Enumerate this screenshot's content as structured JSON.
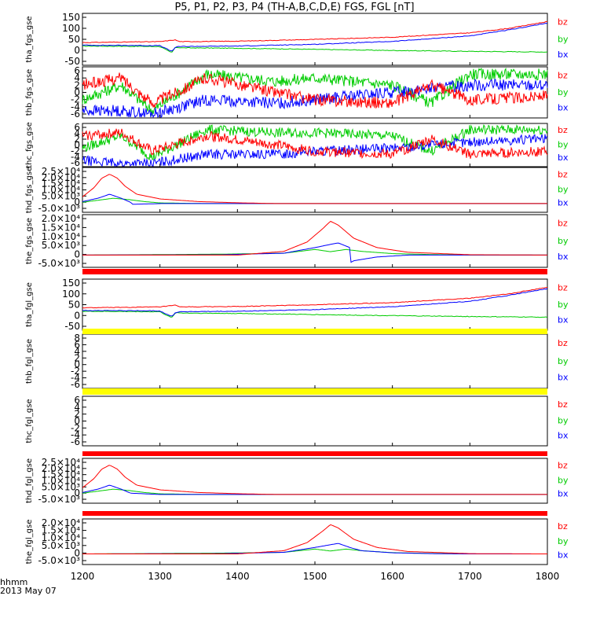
{
  "title": "P5, P1, P2, P3, P4 (TH-A,B,C,D,E) FGS, FGL [nT]",
  "footer": {
    "axis_label": "hhmm",
    "date": "2013 May 07"
  },
  "colors": {
    "bx": "#0000ff",
    "by": "#00cc00",
    "bz": "#ff0000",
    "flag_red": "#ff0000",
    "flag_yellow": "#ffff00"
  },
  "legend": [
    "bz",
    "by",
    "bx"
  ],
  "chart_data": [
    {
      "type": "line",
      "ylabel": "tha_fgs_gse",
      "yticks": [
        "150",
        "100",
        "50",
        "0",
        "-50"
      ],
      "ylim": [
        -75,
        160
      ],
      "kind": "slow",
      "series": [
        {
          "name": "bz",
          "x": [
            1200,
            1300,
            1315,
            1320,
            1325,
            1400,
            1500,
            1600,
            1700,
            1750,
            1800
          ],
          "values": [
            28,
            32,
            38,
            40,
            32,
            34,
            42,
            52,
            72,
            92,
            123
          ]
        },
        {
          "name": "by",
          "x": [
            1200,
            1300,
            1315,
            1320,
            1330,
            1400,
            1500,
            1600,
            1700,
            1800
          ],
          "values": [
            12,
            10,
            -18,
            6,
            4,
            2,
            -3,
            -8,
            -12,
            -15
          ]
        },
        {
          "name": "bx",
          "x": [
            1200,
            1300,
            1315,
            1320,
            1325,
            1400,
            1500,
            1600,
            1700,
            1750,
            1800
          ],
          "values": [
            16,
            14,
            -12,
            6,
            10,
            12,
            20,
            33,
            58,
            85,
            116
          ]
        }
      ]
    },
    {
      "type": "line",
      "ylabel": "thb_fgs_gse",
      "yticks": [
        "6",
        "4",
        "2",
        "0",
        "-2",
        "-4",
        "-6"
      ],
      "ylim": [
        -7,
        7
      ],
      "kind": "noisy",
      "series": [
        {
          "name": "bz",
          "x": [
            1200,
            1250,
            1290,
            1360,
            1450,
            1500,
            1600,
            1650,
            1700,
            1800
          ],
          "values": [
            2,
            4,
            -3,
            4,
            0,
            -2,
            -3,
            2,
            -2,
            -1
          ]
        },
        {
          "name": "by",
          "x": [
            1200,
            1250,
            1290,
            1360,
            1450,
            1500,
            1600,
            1650,
            1700,
            1800
          ],
          "values": [
            -2,
            2,
            -5,
            5,
            3,
            4,
            2,
            -3,
            5,
            5
          ]
        },
        {
          "name": "bx",
          "x": [
            1200,
            1250,
            1290,
            1360,
            1450,
            1500,
            1600,
            1650,
            1700,
            1800
          ],
          "values": [
            -5,
            -5,
            -6,
            -2,
            -3,
            -2,
            0,
            1,
            2,
            2
          ]
        }
      ]
    },
    {
      "type": "line",
      "ylabel": "thc_fgs_gse",
      "yticks": [
        "6",
        "4",
        "2",
        "0",
        "-2",
        "-4",
        "-6"
      ],
      "ylim": [
        -7,
        7
      ],
      "kind": "noisy",
      "series": [
        {
          "name": "bz",
          "x": [
            1200,
            1250,
            1290,
            1360,
            1450,
            1500,
            1600,
            1650,
            1700,
            1800
          ],
          "values": [
            3,
            4,
            -2,
            3,
            0,
            -2,
            -3,
            2,
            -3,
            -2
          ]
        },
        {
          "name": "by",
          "x": [
            1200,
            1250,
            1290,
            1360,
            1450,
            1500,
            1600,
            1650,
            1700,
            1800
          ],
          "values": [
            -1,
            3,
            -4,
            5,
            4,
            4,
            3,
            -2,
            5,
            5
          ]
        },
        {
          "name": "bx",
          "x": [
            1200,
            1250,
            1290,
            1360,
            1450,
            1500,
            1600,
            1650,
            1700,
            1800
          ],
          "values": [
            -5,
            -6,
            -6,
            -3,
            -3,
            -2,
            -1,
            0,
            1,
            2
          ]
        }
      ]
    },
    {
      "type": "line",
      "ylabel": "thd_fgs_gse",
      "yticks": [
        "2.5×10⁴",
        "2.0×10⁴",
        "1.5×10⁴",
        "1.0×10⁴",
        "5.0×10³",
        "0",
        "-5.0×10³"
      ],
      "ylim": [
        -6500,
        27000
      ],
      "kind": "smooth",
      "series": [
        {
          "name": "bz",
          "x": [
            1200,
            1215,
            1225,
            1235,
            1245,
            1255,
            1270,
            1300,
            1350,
            1400,
            1450,
            1800
          ],
          "values": [
            5000,
            12000,
            19000,
            22000,
            19000,
            13000,
            7000,
            3500,
            1500,
            600,
            0,
            0
          ]
        },
        {
          "name": "by",
          "x": [
            1200,
            1220,
            1240,
            1260,
            1280,
            1300,
            1360,
            1800
          ],
          "values": [
            1000,
            2500,
            4000,
            3000,
            1500,
            500,
            0,
            0
          ]
        },
        {
          "name": "bx",
          "x": [
            1200,
            1220,
            1235,
            1250,
            1262,
            1265,
            1300,
            1800
          ],
          "values": [
            1500,
            4000,
            7000,
            4000,
            1000,
            -500,
            0,
            0
          ]
        }
      ]
    },
    {
      "type": "line",
      "ylabel": "the_fgs_gse",
      "yticks": [
        "2.0×10⁴",
        "1.5×10⁴",
        "1.0×10⁴",
        "5.0×10³",
        "0",
        "-5.0×10³"
      ],
      "ylim": [
        -6500,
        21500
      ],
      "kind": "smooth",
      "series": [
        {
          "name": "bz",
          "x": [
            1200,
            1400,
            1460,
            1490,
            1510,
            1520,
            1530,
            1550,
            1580,
            1620,
            1700,
            1800
          ],
          "values": [
            0,
            0,
            2000,
            7000,
            14000,
            18000,
            16000,
            9000,
            4000,
            1500,
            200,
            0
          ]
        },
        {
          "name": "by",
          "x": [
            1200,
            1380,
            1460,
            1500,
            1520,
            1540,
            1560,
            1600,
            1650,
            1700,
            1800
          ],
          "values": [
            0,
            500,
            1000,
            3000,
            1800,
            3000,
            2000,
            800,
            300,
            0,
            0
          ]
        },
        {
          "name": "bx",
          "x": [
            1200,
            1380,
            1460,
            1500,
            1530,
            1545,
            1546,
            1550,
            1580,
            1620,
            1700,
            1800
          ],
          "values": [
            0,
            200,
            1000,
            4000,
            6500,
            4000,
            -4000,
            -3000,
            -1000,
            0,
            0,
            0
          ]
        }
      ]
    },
    {
      "type": "line",
      "ylabel": "tha_fgl_gse",
      "yticks": [
        "150",
        "100",
        "50",
        "0",
        "-50"
      ],
      "ylim": [
        -75,
        160
      ],
      "kind": "slow",
      "series": [
        {
          "name": "bz",
          "x": [
            1200,
            1300,
            1315,
            1320,
            1325,
            1400,
            1500,
            1600,
            1700,
            1750,
            1800
          ],
          "values": [
            28,
            32,
            38,
            40,
            32,
            34,
            42,
            52,
            72,
            92,
            123
          ]
        },
        {
          "name": "by",
          "x": [
            1200,
            1300,
            1315,
            1320,
            1330,
            1400,
            1500,
            1600,
            1700,
            1800
          ],
          "values": [
            12,
            10,
            -18,
            6,
            4,
            2,
            -3,
            -8,
            -12,
            -15
          ]
        },
        {
          "name": "bx",
          "x": [
            1200,
            1300,
            1315,
            1320,
            1325,
            1400,
            1500,
            1600,
            1700,
            1750,
            1800
          ],
          "values": [
            16,
            14,
            -12,
            6,
            10,
            12,
            20,
            33,
            58,
            85,
            116
          ]
        }
      ]
    },
    {
      "type": "line",
      "ylabel": "thb_fgl_gse",
      "yticks": [
        "8",
        "6",
        "4",
        "2",
        "0",
        "-2",
        "-4",
        "-6"
      ],
      "ylim": [
        -7,
        9
      ],
      "kind": "empty",
      "series": []
    },
    {
      "type": "line",
      "ylabel": "thc_fgl_gse",
      "yticks": [
        "6",
        "4",
        "2",
        "0",
        "-2",
        "-4",
        "-6"
      ],
      "ylim": [
        -7,
        7
      ],
      "kind": "empty",
      "series": []
    },
    {
      "type": "line",
      "ylabel": "thd_fgl_gse",
      "yticks": [
        "2.5×10⁴",
        "2.0×10⁴",
        "1.5×10⁴",
        "1.0×10⁴",
        "5.0×10³",
        "0",
        "-5.0×10³"
      ],
      "ylim": [
        -6500,
        27000
      ],
      "kind": "smooth",
      "series": [
        {
          "name": "bz",
          "x": [
            1200,
            1215,
            1225,
            1235,
            1245,
            1255,
            1270,
            1300,
            1350,
            1400,
            1450,
            1800
          ],
          "values": [
            5000,
            12000,
            19000,
            22000,
            19000,
            13000,
            7000,
            3500,
            1500,
            600,
            0,
            0
          ]
        },
        {
          "name": "by",
          "x": [
            1200,
            1220,
            1240,
            1260,
            1280,
            1300,
            1360,
            1800
          ],
          "values": [
            1000,
            2500,
            4000,
            3000,
            1500,
            500,
            0,
            0
          ]
        },
        {
          "name": "bx",
          "x": [
            1200,
            1220,
            1235,
            1250,
            1262,
            1300,
            1800
          ],
          "values": [
            1500,
            4000,
            7000,
            4000,
            1000,
            0,
            0
          ]
        }
      ]
    },
    {
      "type": "line",
      "ylabel": "the_fgl_gse",
      "yticks": [
        "2.0×10⁴",
        "1.5×10⁴",
        "1.0×10⁴",
        "5.0×10³",
        "0",
        "-5.0×10³"
      ],
      "ylim": [
        -6500,
        21500
      ],
      "kind": "smooth",
      "series": [
        {
          "name": "bz",
          "x": [
            1200,
            1400,
            1460,
            1490,
            1510,
            1520,
            1530,
            1550,
            1580,
            1620,
            1700,
            1800
          ],
          "values": [
            0,
            0,
            2000,
            7000,
            14000,
            18000,
            16000,
            9000,
            4000,
            1500,
            200,
            0
          ]
        },
        {
          "name": "by",
          "x": [
            1200,
            1380,
            1460,
            1500,
            1520,
            1540,
            1560,
            1600,
            1650,
            1700,
            1800
          ],
          "values": [
            0,
            500,
            1000,
            3000,
            1800,
            3000,
            2000,
            800,
            300,
            0,
            0
          ]
        },
        {
          "name": "bx",
          "x": [
            1200,
            1380,
            1460,
            1500,
            1530,
            1545,
            1560,
            1600,
            1650,
            1700,
            1800
          ],
          "values": [
            0,
            200,
            1000,
            4000,
            6500,
            4000,
            2000,
            700,
            200,
            0,
            0
          ]
        }
      ]
    }
  ],
  "xaxis": {
    "ticks": [
      "1200",
      "1300",
      "1400",
      "1500",
      "1600",
      "1700",
      "1800"
    ],
    "xlim": [
      1200,
      1800
    ]
  },
  "flag_bars": [
    {
      "color": "flag_red"
    },
    {
      "color": "flag_yellow"
    },
    {
      "color": "flag_yellow"
    },
    {
      "color": "flag_red"
    },
    {
      "color": "flag_red"
    }
  ]
}
